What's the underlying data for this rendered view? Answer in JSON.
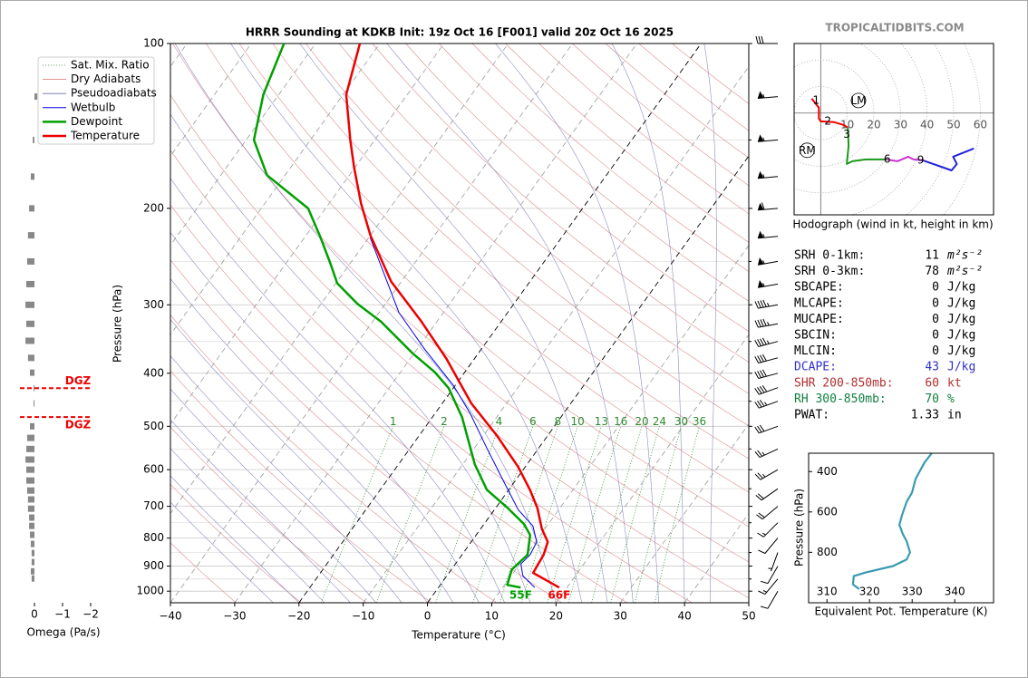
{
  "brand": "TROPICALTIDBITS.COM",
  "chart_data": [
    {
      "type": "skewt",
      "title": "HRRR Sounding at KDKB Init: 19z Oct 16 [F001] valid 20z Oct 16 2025",
      "xlabel": "Temperature (°C)",
      "ylabel": "Pressure (hPa)",
      "xlim": [
        -40,
        50
      ],
      "ylim": [
        1050,
        100
      ],
      "log_y": true,
      "xticks": [
        {
          "value": -40,
          "label": "−40"
        },
        {
          "value": -30,
          "label": "−30"
        },
        {
          "value": -20,
          "label": "−20"
        },
        {
          "value": -10,
          "label": "−10"
        },
        0,
        10,
        20,
        30,
        40,
        50
      ],
      "yticks": [
        100,
        200,
        300,
        400,
        500,
        600,
        700,
        800,
        900,
        1000
      ],
      "yticks_minor": [
        150,
        250,
        350,
        450,
        550,
        650,
        750,
        850,
        950
      ],
      "grid": true,
      "highlight_isotherms": [
        -20,
        0
      ],
      "mixing_ratios": [
        1,
        2,
        4,
        6,
        8,
        10,
        13,
        16,
        20,
        24,
        30,
        36
      ],
      "legend": "upper left",
      "background": [
        {
          "name": "Sat. Mix. Ratio",
          "color": "#2e8b2e"
        },
        {
          "name": "Dry Adiabats",
          "color": "#d47070"
        },
        {
          "name": "Pseudoadiabats",
          "color": "#7070b0"
        }
      ],
      "series": [
        {
          "name": "Wetbulb",
          "color": "#0000dd",
          "y": [
            985,
            937,
            892,
            858,
            813,
            760,
            710,
            628,
            550,
            472,
            421,
            361,
            310,
            226
          ],
          "x": [
            15.0,
            11.8,
            10.2,
            10.6,
            10.2,
            7.8,
            3.7,
            -1.9,
            -7.9,
            -14.7,
            -20.3,
            -28.9,
            -36.9,
            -49.8
          ]
        },
        {
          "name": "Dewpoint",
          "color": "#00a000",
          "surface_label": "55F",
          "y": [
            985,
            974,
            913,
            858,
            790,
            754,
            704,
            653,
            587,
            481,
            426,
            398,
            368,
            322,
            299,
            274,
            252,
            224,
            200,
            174,
            150,
            124,
            100
          ],
          "x": [
            12.8,
            10.4,
            9.4,
            10.2,
            8.4,
            6.2,
            1.8,
            -3.4,
            -8.1,
            -15.4,
            -20.7,
            -24.7,
            -30.2,
            -38.7,
            -44.3,
            -49.8,
            -53.1,
            -57.9,
            -62.7,
            -72.8,
            -78.8,
            -82.4,
            -84.9
          ]
        },
        {
          "name": "Temperature",
          "color": "#ee0000",
          "surface_label": "66F",
          "y": [
            985,
            926,
            858,
            813,
            769,
            705,
            653,
            593,
            519,
            454,
            376,
            322,
            272,
            224,
            196,
            168,
            150,
            124,
            100
          ],
          "x": [
            18.8,
            13.1,
            12.7,
            11.9,
            9.5,
            6.5,
            3.3,
            -1.1,
            -8.0,
            -15.5,
            -24.4,
            -32.4,
            -41.6,
            -50.0,
            -55.0,
            -60.2,
            -63.8,
            -69.5,
            -73.1
          ]
        }
      ],
      "winds": {
        "pressures": [
          100,
          125,
          150,
          175,
          200,
          225,
          250,
          275,
          300,
          325,
          350,
          375,
          400,
          425,
          450,
          500,
          550,
          600,
          650,
          700,
          750,
          800,
          850,
          900,
          950,
          1000
        ],
        "speeds": [
          30,
          55,
          55,
          55,
          60,
          55,
          55,
          55,
          45,
          45,
          45,
          40,
          40,
          40,
          35,
          30,
          25,
          25,
          20,
          20,
          15,
          10,
          5,
          10,
          15,
          10
        ],
        "directions": [
          270,
          265,
          265,
          265,
          265,
          265,
          260,
          260,
          260,
          260,
          255,
          255,
          255,
          250,
          250,
          250,
          245,
          240,
          235,
          230,
          225,
          220,
          200,
          210,
          220,
          210
        ]
      }
    },
    {
      "type": "omega",
      "xlabel": "Omega (Pa/s)",
      "xlim": [
        0.5,
        -2
      ],
      "ylim": [
        1050,
        100
      ],
      "xticks": [
        0,
        {
          "value": -1,
          "label": "−1"
        },
        {
          "value": -2,
          "label": "−2"
        }
      ],
      "color": "#888888",
      "pressures": [
        125,
        150,
        175,
        200,
        224,
        250,
        275,
        300,
        325,
        349,
        375,
        399,
        426,
        454,
        500,
        525,
        550,
        575,
        600,
        628,
        655,
        680,
        707,
        734,
        760,
        789,
        820,
        852,
        885,
        920,
        948
      ],
      "values": [
        -0.1,
        0.06,
        0.13,
        0.19,
        0.23,
        0.26,
        0.29,
        0.32,
        0.29,
        0.32,
        0.23,
        0.16,
        0.03,
        0.03,
        0.16,
        0.26,
        0.29,
        0.32,
        0.29,
        0.29,
        0.26,
        0.23,
        0.23,
        0.19,
        0.19,
        0.16,
        0.13,
        0.1,
        0.1,
        0.13,
        0.1
      ],
      "dgz": {
        "label": "DGZ",
        "color": "#ee0000",
        "pressures": [
          426,
          481
        ]
      }
    },
    {
      "type": "hodograph",
      "caption": "Hodograph (wind in kt, height in km)",
      "xlim": [
        -10,
        65
      ],
      "ylim": [
        -38,
        26
      ],
      "rings": [
        10,
        20,
        30,
        40,
        50,
        60
      ],
      "series": [
        {
          "color": "#ee0000",
          "u": [
            -3.4,
            -0.7,
            -0.7,
            0,
            5.1,
            8.5,
            10.2
          ],
          "v": [
            5.4,
            2,
            -2,
            -3.1,
            -3.4,
            -4.4,
            -5.4
          ]
        },
        {
          "color": "#1a9a1a",
          "u": [
            10.2,
            10.5,
            9.8,
            11.9,
            16.9,
            24.7
          ],
          "v": [
            -5.4,
            -12.2,
            -19,
            -18,
            -17.3,
            -17.3
          ]
        },
        {
          "color": "#cc33cc",
          "u": [
            24.7,
            28.8,
            32.9,
            34.9,
            38.3
          ],
          "v": [
            -17.3,
            -18,
            -16.3,
            -17.3,
            -17.6
          ]
        },
        {
          "color": "#2222dd",
          "u": [
            38.3,
            49.2,
            51.2,
            49.8,
            57.6
          ],
          "v": [
            -17.6,
            -21.4,
            -19,
            -16.3,
            -13.2
          ]
        }
      ],
      "height_marks": [
        {
          "value": 1,
          "u": -1.7,
          "v": 4.7
        },
        {
          "value": 2,
          "u": 2.7,
          "v": -3.1
        },
        {
          "value": 3,
          "u": 9.8,
          "v": -8.1
        },
        {
          "value": 6,
          "u": 25.0,
          "v": -17.3
        },
        {
          "value": 9,
          "u": 37.6,
          "v": -17.6
        }
      ],
      "storm_motions": [
        {
          "label": "LM",
          "u": 14.2,
          "v": 4.7
        },
        {
          "label": "RM",
          "u": -5.1,
          "v": -13.9
        }
      ]
    },
    {
      "type": "line",
      "xlabel": "Equivalent Pot. Temperature (K)",
      "ylabel": "Pressure (hPa)",
      "xlim": [
        305.7,
        349.1
      ],
      "ylim": [
        1050,
        309
      ],
      "xticks": [
        310,
        320,
        330,
        340
      ],
      "yticks": [
        400,
        600,
        800
      ],
      "color": "#3a9ab0",
      "x": [
        334.6,
        332.9,
        330.8,
        329.96,
        328.7,
        327.6,
        327.0,
        327.8,
        328.7,
        329.5,
        328.7,
        325.5,
        319.1,
        316.3,
        316.1,
        317.6
      ],
      "y": [
        309,
        355,
        436,
        505,
        550,
        618,
        664,
        709,
        745,
        800,
        836,
        868,
        900,
        918,
        959,
        982
      ]
    }
  ],
  "indices": {
    "rows": [
      {
        "label": "SRH 0-1km:",
        "value": 11,
        "unit": "m²s⁻²",
        "color": "#000000"
      },
      {
        "label": "SRH 0-3km:",
        "value": 78,
        "unit": "m²s⁻²",
        "color": "#000000"
      },
      {
        "label": "SBCAPE:",
        "value": 0,
        "unit": "J/kg",
        "color": "#000000"
      },
      {
        "label": "MLCAPE:",
        "value": 0,
        "unit": "J/kg",
        "color": "#000000"
      },
      {
        "label": "MUCAPE:",
        "value": 0,
        "unit": "J/kg",
        "color": "#000000"
      },
      {
        "label": "SBCIN:",
        "value": 0,
        "unit": "J/kg",
        "color": "#000000"
      },
      {
        "label": "MLCIN:",
        "value": 0,
        "unit": "J/kg",
        "color": "#000000"
      },
      {
        "label": "DCAPE:",
        "value": 43,
        "unit": "J/kg",
        "color": "#3030d0"
      },
      {
        "label": "SHR 200-850mb:",
        "value": 60,
        "unit": "kt",
        "color": "#b03030"
      },
      {
        "label": "RH 300-850mb:",
        "value": 70,
        "unit": "%",
        "color": "#108040"
      },
      {
        "label": "PWAT:",
        "value": 1.33,
        "unit": "in",
        "color": "#000000"
      }
    ]
  }
}
